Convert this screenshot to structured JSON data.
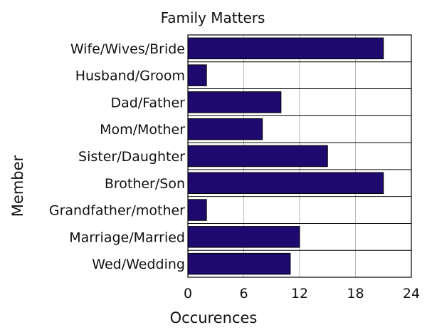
{
  "chart_data": {
    "type": "bar",
    "orientation": "horizontal",
    "title": "Family Matters",
    "xlabel": "Occurences",
    "ylabel": "Member",
    "categories": [
      "Wife/Wives/Bride",
      "Husband/Groom",
      "Dad/Father",
      "Mom/Mother",
      "Sister/Daughter",
      "Brother/Son",
      "Grandfather/mother",
      "Marriage/Married",
      "Wed/Wedding"
    ],
    "values": [
      21,
      2,
      10,
      8,
      15,
      21,
      2,
      12,
      11
    ],
    "xlim": [
      0,
      24
    ],
    "xticks": [
      "0",
      "6",
      "12",
      "18",
      "24"
    ],
    "grid": "vertical",
    "legend": "none",
    "bar_color": "#1e0a6e"
  }
}
